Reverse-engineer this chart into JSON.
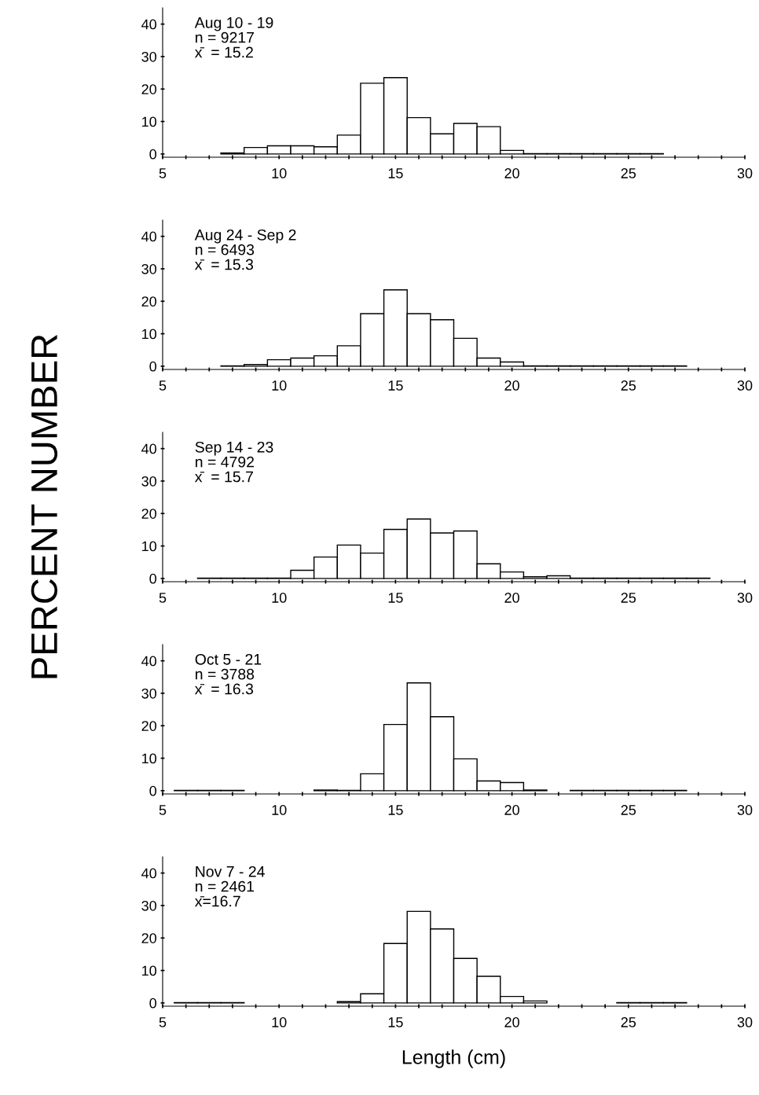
{
  "chart_data": [
    {
      "type": "histogram",
      "annotations": [
        "Aug 10 - 19",
        "n = 9217",
        "x̄  = 15.2"
      ],
      "bins": [
        5.5,
        6.5,
        7.5,
        8.5,
        9.5,
        10.5,
        11.5,
        12.5,
        13.5,
        14.5,
        15.5,
        16.5,
        17.5,
        18.5,
        19.5,
        20.5,
        21.5,
        22.5,
        23.5,
        24.5,
        25.5,
        26.5,
        27.5,
        28.5
      ],
      "values": [
        0,
        0,
        0.3,
        2,
        2.5,
        2.5,
        2.2,
        5.8,
        21.8,
        23.5,
        11.2,
        6.2,
        9.4,
        8.4,
        1.1,
        0.1,
        0.1,
        0.1,
        0.1,
        0.1,
        0.1,
        0,
        0
      ],
      "color": "#ffffff",
      "xlim": [
        5,
        30
      ],
      "ylim": [
        -1,
        45
      ],
      "xticks": [
        5,
        {
          "value": 6,
          "label": null
        },
        {
          "value": 7,
          "label": null
        },
        {
          "value": 8,
          "label": null
        },
        {
          "value": 9,
          "label": null
        },
        10,
        {
          "value": 11,
          "label": null
        },
        {
          "value": 12,
          "label": null
        },
        {
          "value": 13,
          "label": null
        },
        {
          "value": 14,
          "label": null
        },
        15,
        {
          "value": 16,
          "label": null
        },
        {
          "value": 17,
          "label": null
        },
        {
          "value": 18,
          "label": null
        },
        {
          "value": 19,
          "label": null
        },
        20,
        {
          "value": 21,
          "label": null
        },
        {
          "value": 22,
          "label": null
        },
        {
          "value": 23,
          "label": null
        },
        {
          "value": 24,
          "label": null
        },
        25,
        {
          "value": 26,
          "label": null
        },
        {
          "value": 27,
          "label": null
        },
        {
          "value": 28,
          "label": null
        },
        {
          "value": 29,
          "label": null
        },
        30
      ],
      "yticks": [
        0,
        10,
        20,
        30,
        40
      ],
      "grid": false
    },
    {
      "type": "histogram",
      "annotations": [
        "Aug 24 - Sep 2",
        "n = 6493",
        "x̄  = 15.3"
      ],
      "bins": [
        5.5,
        6.5,
        7.5,
        8.5,
        9.5,
        10.5,
        11.5,
        12.5,
        13.5,
        14.5,
        15.5,
        16.5,
        17.5,
        18.5,
        19.5,
        20.5,
        21.5,
        22.5,
        23.5,
        24.5,
        25.5,
        26.5,
        27.5,
        28.5
      ],
      "values": [
        0,
        0,
        0.1,
        0.5,
        2,
        2.5,
        3.2,
        6.3,
        16.2,
        23.5,
        16.2,
        14.3,
        8.6,
        2.5,
        1.3,
        0.1,
        0.1,
        0.1,
        0.1,
        0.1,
        0.1,
        0.1,
        0
      ],
      "color": "#ffffff",
      "xlim": [
        5,
        30
      ],
      "ylim": [
        -1,
        45
      ],
      "xticks": [
        5,
        {
          "value": 6,
          "label": null
        },
        {
          "value": 7,
          "label": null
        },
        {
          "value": 8,
          "label": null
        },
        {
          "value": 9,
          "label": null
        },
        10,
        {
          "value": 11,
          "label": null
        },
        {
          "value": 12,
          "label": null
        },
        {
          "value": 13,
          "label": null
        },
        {
          "value": 14,
          "label": null
        },
        15,
        {
          "value": 16,
          "label": null
        },
        {
          "value": 17,
          "label": null
        },
        {
          "value": 18,
          "label": null
        },
        {
          "value": 19,
          "label": null
        },
        20,
        {
          "value": 21,
          "label": null
        },
        {
          "value": 22,
          "label": null
        },
        {
          "value": 23,
          "label": null
        },
        {
          "value": 24,
          "label": null
        },
        25,
        {
          "value": 26,
          "label": null
        },
        {
          "value": 27,
          "label": null
        },
        {
          "value": 28,
          "label": null
        },
        {
          "value": 29,
          "label": null
        },
        30
      ],
      "yticks": [
        0,
        10,
        20,
        30,
        40
      ],
      "grid": false
    },
    {
      "type": "histogram",
      "annotations": [
        "Sep 14 - 23",
        "n = 4792",
        "x̄  = 15.7"
      ],
      "ylabel": "PERCENT NUMBER",
      "bins": [
        5.5,
        6.5,
        7.5,
        8.5,
        9.5,
        10.5,
        11.5,
        12.5,
        13.5,
        14.5,
        15.5,
        16.5,
        17.5,
        18.5,
        19.5,
        20.5,
        21.5,
        22.5,
        23.5,
        24.5,
        25.5,
        26.5,
        27.5,
        28.5
      ],
      "values": [
        0,
        0.1,
        0.1,
        0.1,
        0.1,
        2.5,
        6.6,
        10.3,
        7.8,
        15.1,
        18.3,
        14,
        14.6,
        4.5,
        2,
        0.5,
        0.8,
        0.1,
        0.1,
        0.1,
        0.1,
        0.1,
        0.1
      ],
      "color": "#ffffff",
      "xlim": [
        5,
        30
      ],
      "ylim": [
        -1,
        45
      ],
      "xticks": [
        5,
        {
          "value": 6,
          "label": null
        },
        {
          "value": 7,
          "label": null
        },
        {
          "value": 8,
          "label": null
        },
        {
          "value": 9,
          "label": null
        },
        10,
        {
          "value": 11,
          "label": null
        },
        {
          "value": 12,
          "label": null
        },
        {
          "value": 13,
          "label": null
        },
        {
          "value": 14,
          "label": null
        },
        15,
        {
          "value": 16,
          "label": null
        },
        {
          "value": 17,
          "label": null
        },
        {
          "value": 18,
          "label": null
        },
        {
          "value": 19,
          "label": null
        },
        20,
        {
          "value": 21,
          "label": null
        },
        {
          "value": 22,
          "label": null
        },
        {
          "value": 23,
          "label": null
        },
        {
          "value": 24,
          "label": null
        },
        25,
        {
          "value": 26,
          "label": null
        },
        {
          "value": 27,
          "label": null
        },
        {
          "value": 28,
          "label": null
        },
        {
          "value": 29,
          "label": null
        },
        30
      ],
      "yticks": [
        0,
        10,
        20,
        30,
        40
      ],
      "grid": false
    },
    {
      "type": "histogram",
      "annotations": [
        "Oct 5 - 21",
        "n = 3788",
        "x̄  = 16.3"
      ],
      "bins": [
        5.5,
        6.5,
        7.5,
        8.5,
        9.5,
        10.5,
        11.5,
        12.5,
        13.5,
        14.5,
        15.5,
        16.5,
        17.5,
        18.5,
        19.5,
        20.5,
        21.5,
        22.5,
        23.5,
        24.5,
        25.5,
        26.5,
        27.5,
        28.5
      ],
      "values": [
        0.1,
        0.1,
        0.1,
        0,
        0,
        0,
        0.2,
        0.1,
        5.2,
        20.4,
        33.2,
        22.8,
        9.8,
        3,
        2.5,
        0.2,
        0,
        0.1,
        0.1,
        0.1,
        0.1,
        0.1,
        0
      ],
      "color": "#ffffff",
      "xlim": [
        5,
        30
      ],
      "ylim": [
        -1,
        45
      ],
      "xticks": [
        5,
        {
          "value": 6,
          "label": null
        },
        {
          "value": 7,
          "label": null
        },
        {
          "value": 8,
          "label": null
        },
        {
          "value": 9,
          "label": null
        },
        10,
        {
          "value": 11,
          "label": null
        },
        {
          "value": 12,
          "label": null
        },
        {
          "value": 13,
          "label": null
        },
        {
          "value": 14,
          "label": null
        },
        15,
        {
          "value": 16,
          "label": null
        },
        {
          "value": 17,
          "label": null
        },
        {
          "value": 18,
          "label": null
        },
        {
          "value": 19,
          "label": null
        },
        20,
        {
          "value": 21,
          "label": null
        },
        {
          "value": 22,
          "label": null
        },
        {
          "value": 23,
          "label": null
        },
        {
          "value": 24,
          "label": null
        },
        25,
        {
          "value": 26,
          "label": null
        },
        {
          "value": 27,
          "label": null
        },
        {
          "value": 28,
          "label": null
        },
        {
          "value": 29,
          "label": null
        },
        30
      ],
      "yticks": [
        0,
        10,
        20,
        30,
        40
      ],
      "grid": false
    },
    {
      "type": "histogram",
      "annotations": [
        "Nov 7 - 24",
        "n = 2461",
        "x̄=16.7"
      ],
      "xlabel": "Length (cm)",
      "bins": [
        5.5,
        6.5,
        7.5,
        8.5,
        9.5,
        10.5,
        11.5,
        12.5,
        13.5,
        14.5,
        15.5,
        16.5,
        17.5,
        18.5,
        19.5,
        20.5,
        21.5,
        22.5,
        23.5,
        24.5,
        25.5,
        26.5,
        27.5,
        28.5
      ],
      "values": [
        0.1,
        0.1,
        0.1,
        0,
        0,
        0,
        0,
        0.4,
        2.8,
        18.3,
        28.2,
        22.8,
        13.7,
        8.2,
        2,
        0.6,
        0,
        0,
        0,
        0.1,
        0.1,
        0.1,
        0
      ],
      "color": "#ffffff",
      "xlim": [
        5,
        30
      ],
      "ylim": [
        -1,
        45
      ],
      "xticks": [
        5,
        {
          "value": 6,
          "label": null
        },
        {
          "value": 7,
          "label": null
        },
        {
          "value": 8,
          "label": null
        },
        {
          "value": 9,
          "label": null
        },
        10,
        {
          "value": 11,
          "label": null
        },
        {
          "value": 12,
          "label": null
        },
        {
          "value": 13,
          "label": null
        },
        {
          "value": 14,
          "label": null
        },
        15,
        {
          "value": 16,
          "label": null
        },
        {
          "value": 17,
          "label": null
        },
        {
          "value": 18,
          "label": null
        },
        {
          "value": 19,
          "label": null
        },
        20,
        {
          "value": 21,
          "label": null
        },
        {
          "value": 22,
          "label": null
        },
        {
          "value": 23,
          "label": null
        },
        {
          "value": 24,
          "label": null
        },
        25,
        {
          "value": 26,
          "label": null
        },
        {
          "value": 27,
          "label": null
        },
        {
          "value": 28,
          "label": null
        },
        {
          "value": 29,
          "label": null
        },
        30
      ],
      "yticks": [
        0,
        10,
        20,
        30,
        40
      ],
      "grid": false
    }
  ]
}
